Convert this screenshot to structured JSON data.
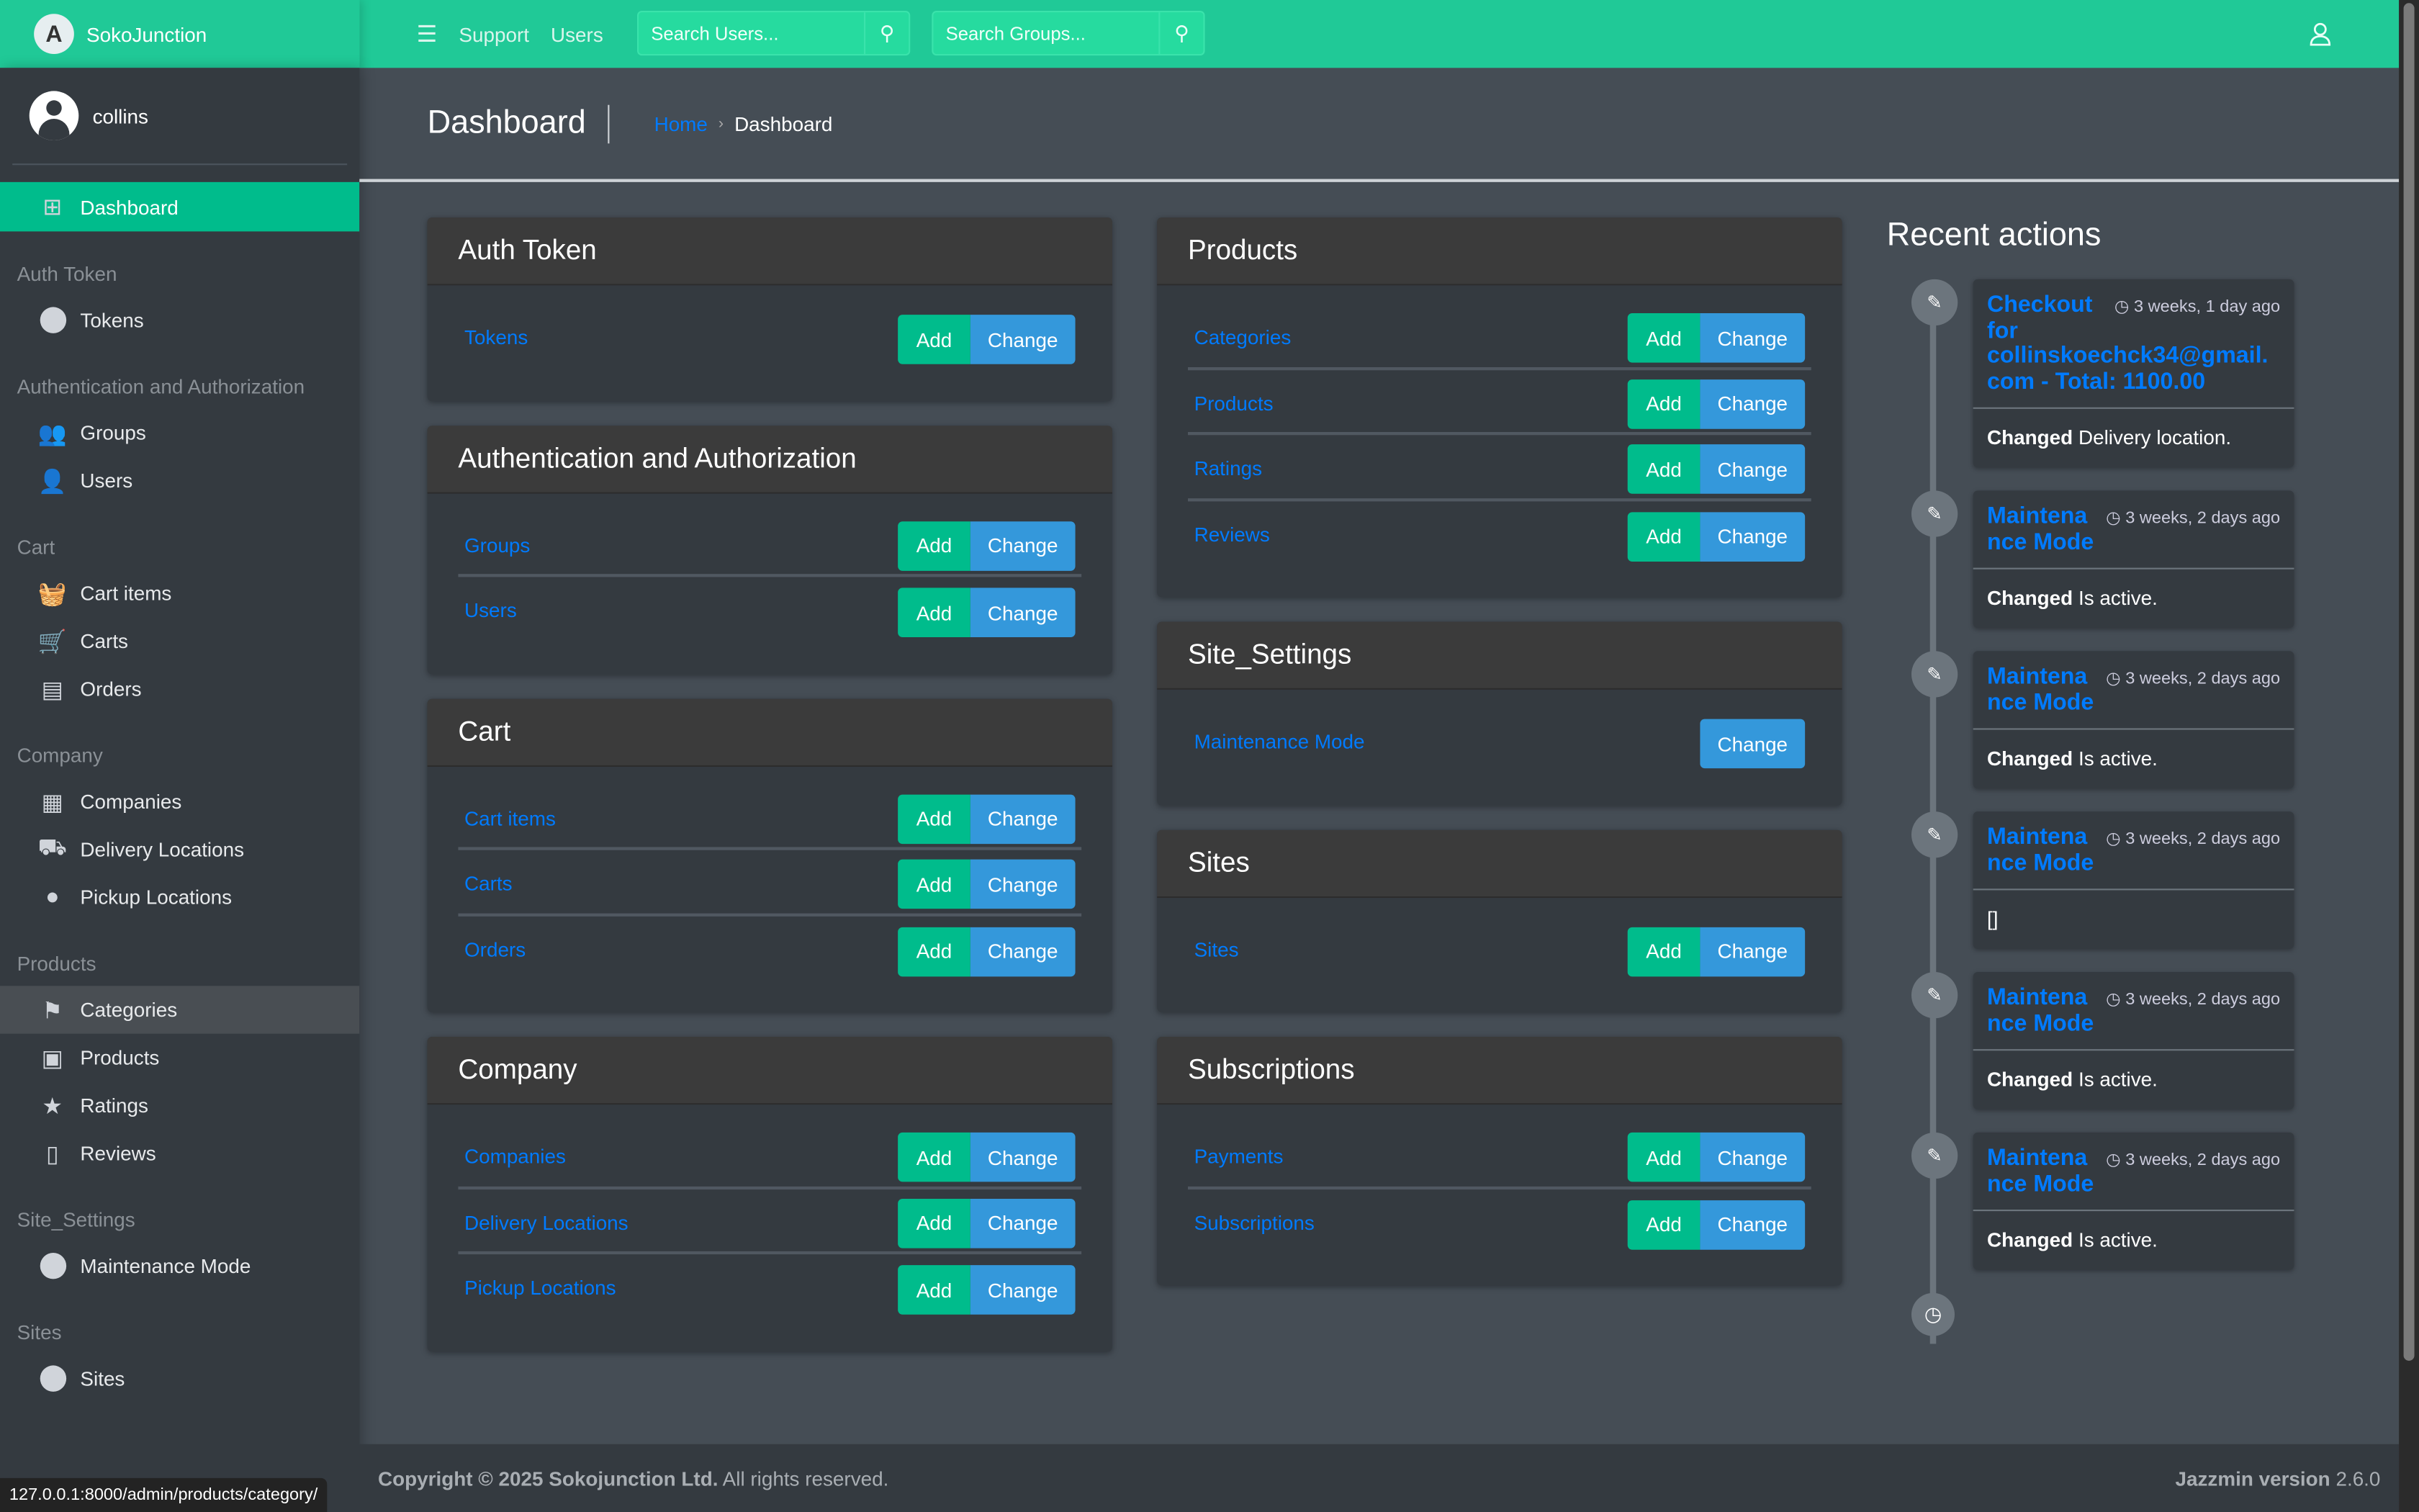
{
  "brand": {
    "name": "SokoJunction",
    "logo_letter": "A"
  },
  "topnav": {
    "support": "Support",
    "users": "Users",
    "search_users_placeholder": "Search Users...",
    "search_groups_placeholder": "Search Groups..."
  },
  "sidebar": {
    "user": "collins",
    "dashboard": "Dashboard",
    "sections": [
      {
        "title": "Auth Token",
        "items": [
          {
            "label": "Tokens",
            "icon": "circle-icon"
          }
        ]
      },
      {
        "title": "Authentication and Authorization",
        "items": [
          {
            "label": "Groups",
            "icon": "users-icon"
          },
          {
            "label": "Users",
            "icon": "user-icon"
          }
        ]
      },
      {
        "title": "Cart",
        "items": [
          {
            "label": "Cart items",
            "icon": "basket-icon"
          },
          {
            "label": "Carts",
            "icon": "cart-icon"
          },
          {
            "label": "Orders",
            "icon": "receipt-icon"
          }
        ]
      },
      {
        "title": "Company",
        "items": [
          {
            "label": "Companies",
            "icon": "building-icon"
          },
          {
            "label": "Delivery Locations",
            "icon": "truck-icon"
          },
          {
            "label": "Pickup Locations",
            "icon": "map-marker-icon"
          }
        ]
      },
      {
        "title": "Products",
        "items": [
          {
            "label": "Categories",
            "icon": "tags-icon",
            "hover": true
          },
          {
            "label": "Products",
            "icon": "box-icon"
          },
          {
            "label": "Ratings",
            "icon": "star-icon"
          },
          {
            "label": "Reviews",
            "icon": "comment-icon"
          }
        ]
      },
      {
        "title": "Site_Settings",
        "items": [
          {
            "label": "Maintenance Mode",
            "icon": "circle-icon"
          }
        ]
      },
      {
        "title": "Sites",
        "items": [
          {
            "label": "Sites",
            "icon": "circle-icon"
          }
        ]
      }
    ]
  },
  "status_url": "127.0.0.1:8000/admin/products/category/",
  "header": {
    "title": "Dashboard",
    "breadcrumb_home": "Home",
    "breadcrumb_current": "Dashboard"
  },
  "buttons": {
    "add": "Add",
    "change": "Change"
  },
  "columns": [
    [
      {
        "title": "Auth Token",
        "rows": [
          {
            "label": "Tokens",
            "add": true
          }
        ]
      },
      {
        "title": "Authentication and Authorization",
        "rows": [
          {
            "label": "Groups",
            "add": true
          },
          {
            "label": "Users",
            "add": true
          }
        ]
      },
      {
        "title": "Cart",
        "rows": [
          {
            "label": "Cart items",
            "add": true
          },
          {
            "label": "Carts",
            "add": true
          },
          {
            "label": "Orders",
            "add": true
          }
        ]
      },
      {
        "title": "Company",
        "rows": [
          {
            "label": "Companies",
            "add": true
          },
          {
            "label": "Delivery Locations",
            "add": true
          },
          {
            "label": "Pickup Locations",
            "add": true
          }
        ]
      }
    ],
    [
      {
        "title": "Products",
        "rows": [
          {
            "label": "Categories",
            "add": true
          },
          {
            "label": "Products",
            "add": true
          },
          {
            "label": "Ratings",
            "add": true
          },
          {
            "label": "Reviews",
            "add": true
          }
        ]
      },
      {
        "title": "Site_Settings",
        "rows": [
          {
            "label": "Maintenance Mode",
            "add": false
          }
        ]
      },
      {
        "title": "Sites",
        "rows": [
          {
            "label": "Sites",
            "add": true
          }
        ]
      },
      {
        "title": "Subscriptions",
        "rows": [
          {
            "label": "Payments",
            "add": true
          },
          {
            "label": "Subscriptions",
            "add": true
          }
        ]
      }
    ]
  ],
  "recent": {
    "title": "Recent actions",
    "items": [
      {
        "title": "Checkout for collinskoechck34@gmail.com - Total: 1100.00",
        "time": "3 weeks, 1 day ago",
        "action": "Changed",
        "detail": "Delivery location."
      },
      {
        "title": "Maintenance Mode",
        "time": "3 weeks, 2 days ago",
        "action": "Changed",
        "detail": "Is active."
      },
      {
        "title": "Maintenance Mode",
        "time": "3 weeks, 2 days ago",
        "action": "Changed",
        "detail": "Is active."
      },
      {
        "title": "Maintenance Mode",
        "time": "3 weeks, 2 days ago",
        "action": "",
        "detail": "[]"
      },
      {
        "title": "Maintenance Mode",
        "time": "3 weeks, 2 days ago",
        "action": "Changed",
        "detail": "Is active."
      },
      {
        "title": "Maintenance Mode",
        "time": "3 weeks, 2 days ago",
        "action": "Changed",
        "detail": "Is active."
      }
    ]
  },
  "footer": {
    "copyright_bold": "Copyright © 2025 Sokojunction Ltd.",
    "copyright_rest": " All rights reserved.",
    "version_bold": "Jazzmin version",
    "version": " 2.6.0"
  },
  "colors": {
    "accent": "#20c997",
    "add": "#00bc8c",
    "change": "#3498db",
    "link": "#007bff"
  }
}
